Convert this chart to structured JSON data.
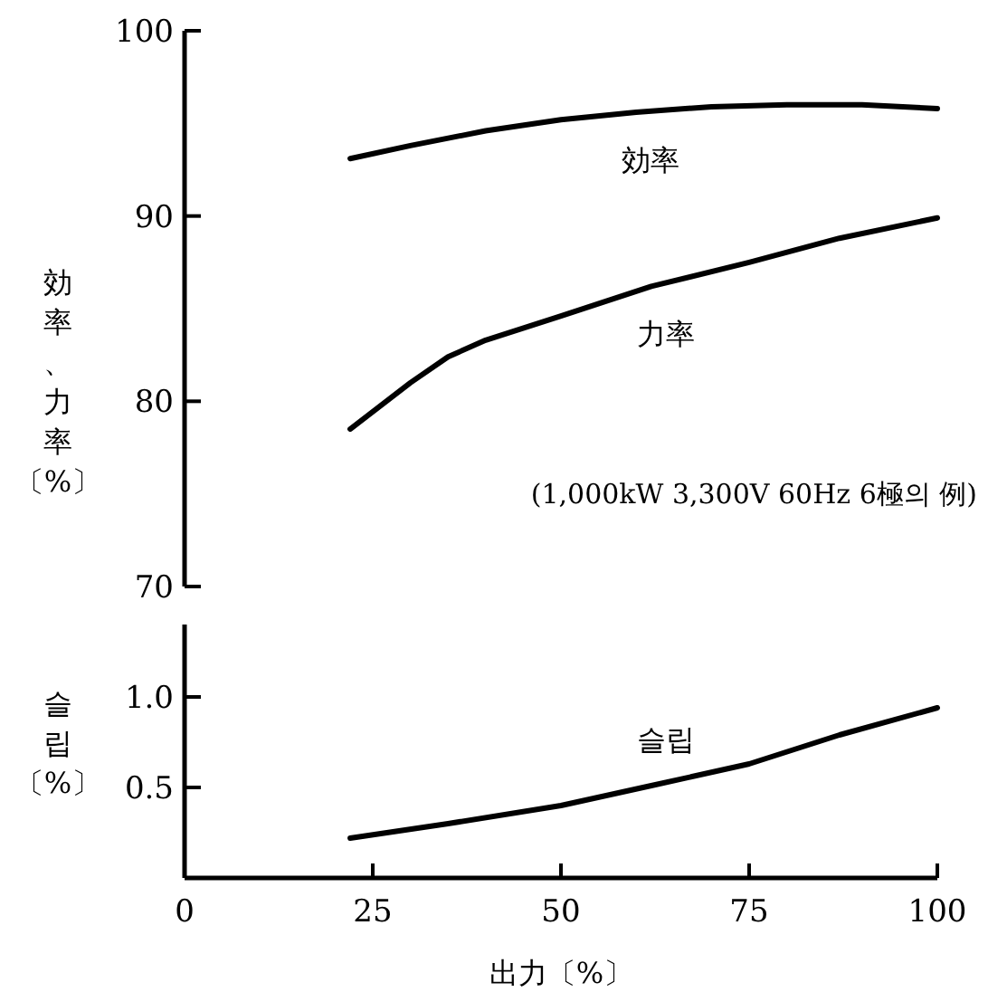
{
  "chart_data": [
    {
      "type": "line",
      "ylabel": "効率、力率〔%〕",
      "xlim": [
        0,
        100
      ],
      "ylim": [
        70,
        100
      ],
      "yticks": [
        70,
        80,
        90,
        100
      ],
      "tick_labels": "y",
      "grid": false,
      "marker": "none",
      "line_style": "solid",
      "annotations": [
        "(1,000kW 3,300V 60Hz 6極의 例)"
      ],
      "series": [
        {
          "name": "効率",
          "color": "#000000",
          "x": [
            22,
            30,
            40,
            50,
            60,
            70,
            80,
            90,
            100
          ],
          "values": [
            93.1,
            93.8,
            94.6,
            95.2,
            95.6,
            95.9,
            96.0,
            96.0,
            95.8
          ]
        },
        {
          "name": "力率",
          "color": "#000000",
          "x": [
            22,
            30,
            35,
            40,
            50,
            62,
            75,
            87,
            100
          ],
          "values": [
            78.5,
            81.0,
            82.4,
            83.3,
            84.6,
            86.2,
            87.5,
            88.8,
            89.9
          ]
        }
      ]
    },
    {
      "type": "line",
      "xlabel": "出力〔%〕",
      "ylabel": "슬립〔%〕",
      "xlim": [
        0,
        100
      ],
      "xticks": [
        0,
        25,
        50,
        75,
        100
      ],
      "ylim": [
        0,
        1.4
      ],
      "yticks": [
        {
          "value": 0.5,
          "label": "0.5"
        },
        {
          "value": 1.0,
          "label": "1.0"
        }
      ],
      "grid": false,
      "marker": "none",
      "line_style": "solid",
      "series": [
        {
          "name": "슬립",
          "color": "#000000",
          "x": [
            22,
            35,
            50,
            62,
            75,
            87,
            100
          ],
          "values": [
            0.22,
            0.3,
            0.4,
            0.51,
            0.63,
            0.79,
            0.94
          ]
        }
      ]
    }
  ]
}
